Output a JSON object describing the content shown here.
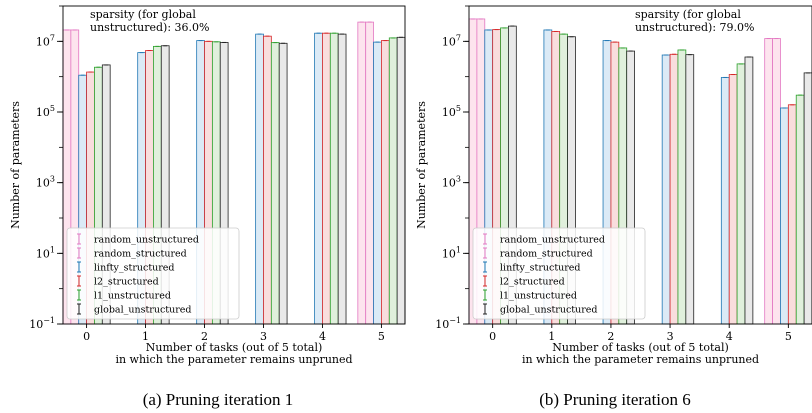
{
  "chart_data": [
    {
      "type": "bar",
      "log_scale_y": true,
      "caption": "(a) Pruning iteration 1",
      "annotation_lines": [
        "sparsity (for global",
        "unstructured): 36.0%"
      ],
      "xlabel_lines": [
        "Number of tasks (out of 5 total)",
        "in which the parameter remains unpruned"
      ],
      "ylabel": "Number of parameters",
      "categories": [
        "0",
        "1",
        "2",
        "3",
        "4",
        "5"
      ],
      "ylim": [
        0.1,
        100000000
      ],
      "y_ticks": [
        0.1,
        10,
        1000,
        100000,
        10000000
      ],
      "y_tick_labels": [
        {
          "base": "10",
          "exp": "−1"
        },
        {
          "base": "10",
          "exp": "1"
        },
        {
          "base": "10",
          "exp": "3"
        },
        {
          "base": "10",
          "exp": "5"
        },
        {
          "base": "10",
          "exp": "7"
        }
      ],
      "legend_position": "lower-left",
      "series": [
        {
          "name": "random_unstructured",
          "values": [
            21000000,
            0,
            0,
            0,
            0,
            35000000
          ]
        },
        {
          "name": "random_structured",
          "values": [
            21000000,
            0,
            0,
            0,
            0,
            35000000
          ]
        },
        {
          "name": "linfty_structured",
          "values": [
            1100000,
            4800000,
            10500000,
            16000000,
            17000000,
            9500000
          ]
        },
        {
          "name": "l2_structured",
          "values": [
            1350000,
            5500000,
            10000000,
            14000000,
            17000000,
            10500000
          ]
        },
        {
          "name": "l1_unstructured",
          "values": [
            1850000,
            7200000,
            9700000,
            9200000,
            17000000,
            12500000
          ]
        },
        {
          "name": "global_unstructured",
          "values": [
            2150000,
            7500000,
            9300000,
            8800000,
            16000000,
            13000000
          ]
        }
      ]
    },
    {
      "type": "bar",
      "log_scale_y": true,
      "caption": "(b) Pruning iteration 6",
      "annotation_lines": [
        "sparsity (for global",
        "unstructured): 79.0%"
      ],
      "xlabel_lines": [
        "Number of tasks (out of 5 total)",
        "in which the parameter remains unpruned"
      ],
      "ylabel": "Number of parameters",
      "categories": [
        "0",
        "1",
        "2",
        "3",
        "4",
        "5"
      ],
      "ylim": [
        0.1,
        100000000
      ],
      "y_ticks": [
        0.1,
        10,
        1000,
        100000,
        10000000
      ],
      "y_tick_labels": [
        {
          "base": "10",
          "exp": "−1"
        },
        {
          "base": "10",
          "exp": "1"
        },
        {
          "base": "10",
          "exp": "3"
        },
        {
          "base": "10",
          "exp": "5"
        },
        {
          "base": "10",
          "exp": "7"
        }
      ],
      "legend_position": "lower-left",
      "series": [
        {
          "name": "random_unstructured",
          "values": [
            43000000,
            0,
            0,
            0,
            0,
            12000000
          ]
        },
        {
          "name": "random_structured",
          "values": [
            43000000,
            0,
            0,
            0,
            0,
            12000000
          ]
        },
        {
          "name": "linfty_structured",
          "values": [
            21000000,
            21000000,
            10500000,
            4100000,
            950000,
            130000
          ]
        },
        {
          "name": "l2_structured",
          "values": [
            21500000,
            19000000,
            9500000,
            4300000,
            1150000,
            160000
          ]
        },
        {
          "name": "l1_unstructured",
          "values": [
            24000000,
            16000000,
            6500000,
            5700000,
            2300000,
            300000
          ]
        },
        {
          "name": "global_unstructured",
          "values": [
            27000000,
            13500000,
            5300000,
            4200000,
            3600000,
            1280000
          ]
        }
      ]
    }
  ],
  "series_colors": {
    "fill": [
      "#fde4ee",
      "#fde4ee",
      "#dbeaf6",
      "#f9dddd",
      "#e0f0dc",
      "#e9e9e9"
    ],
    "edge": [
      "#e377c2",
      "#e377c2",
      "#1f77b4",
      "#d62728",
      "#2ca02c",
      "#222222"
    ]
  }
}
